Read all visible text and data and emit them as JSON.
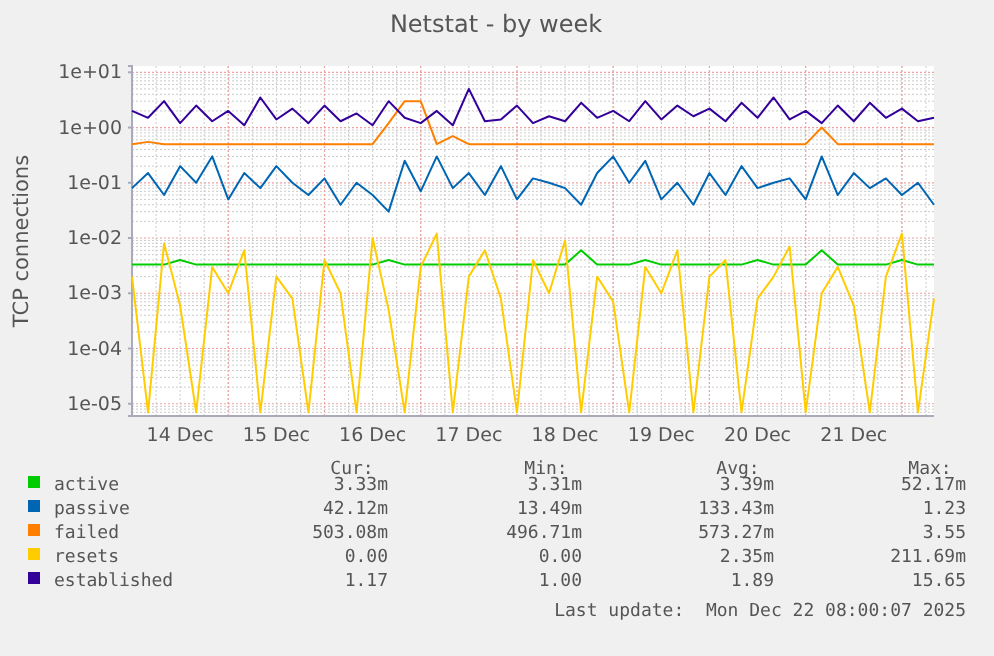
{
  "chart_data": {
    "type": "line",
    "title": "Netstat - by week",
    "ylabel": "TCP connections",
    "log": true,
    "grid": true,
    "legend": "bottom",
    "ylim": [
      6e-06,
      13
    ],
    "yticks": [
      {
        "value": 10,
        "label": "1e+01"
      },
      {
        "value": 1,
        "label": "1e+00"
      },
      {
        "value": 0.1,
        "label": "1e-01"
      },
      {
        "value": 0.01,
        "label": "1e-02"
      },
      {
        "value": 0.001,
        "label": "1e-03"
      },
      {
        "value": 0.0001,
        "label": "1e-04"
      },
      {
        "value": 1e-05,
        "label": "1e-05"
      }
    ],
    "xlim": [
      "2025-12-14T00:00",
      "2025-12-22T08:00"
    ],
    "xticks": [
      {
        "value": "2025-12-14T12:00",
        "label": "14 Dec"
      },
      {
        "value": "2025-12-15T12:00",
        "label": "15 Dec"
      },
      {
        "value": "2025-12-16T12:00",
        "label": "16 Dec"
      },
      {
        "value": "2025-12-17T12:00",
        "label": "17 Dec"
      },
      {
        "value": "2025-12-18T12:00",
        "label": "18 Dec"
      },
      {
        "value": "2025-12-19T12:00",
        "label": "19 Dec"
      },
      {
        "value": "2025-12-20T12:00",
        "label": "20 Dec"
      },
      {
        "value": "2025-12-21T12:00",
        "label": "21 Dec"
      }
    ],
    "x": [
      "2025-12-14T00:00",
      "2025-12-14T04:00",
      "2025-12-14T08:00",
      "2025-12-14T12:00",
      "2025-12-14T16:00",
      "2025-12-14T20:00",
      "2025-12-15T00:00",
      "2025-12-15T04:00",
      "2025-12-15T08:00",
      "2025-12-15T12:00",
      "2025-12-15T16:00",
      "2025-12-15T20:00",
      "2025-12-16T00:00",
      "2025-12-16T04:00",
      "2025-12-16T08:00",
      "2025-12-16T12:00",
      "2025-12-16T16:00",
      "2025-12-16T20:00",
      "2025-12-17T00:00",
      "2025-12-17T04:00",
      "2025-12-17T08:00",
      "2025-12-17T12:00",
      "2025-12-17T16:00",
      "2025-12-17T20:00",
      "2025-12-18T00:00",
      "2025-12-18T04:00",
      "2025-12-18T08:00",
      "2025-12-18T12:00",
      "2025-12-18T16:00",
      "2025-12-18T20:00",
      "2025-12-19T00:00",
      "2025-12-19T04:00",
      "2025-12-19T08:00",
      "2025-12-19T12:00",
      "2025-12-19T16:00",
      "2025-12-19T20:00",
      "2025-12-20T00:00",
      "2025-12-20T04:00",
      "2025-12-20T08:00",
      "2025-12-20T12:00",
      "2025-12-20T16:00",
      "2025-12-20T20:00",
      "2025-12-21T00:00",
      "2025-12-21T04:00",
      "2025-12-21T08:00",
      "2025-12-21T12:00",
      "2025-12-21T16:00",
      "2025-12-21T20:00",
      "2025-12-22T00:00",
      "2025-12-22T04:00",
      "2025-12-22T08:00"
    ],
    "series": [
      {
        "name": "active",
        "color": "#00cc00",
        "values": [
          0.0033,
          0.0033,
          0.0033,
          0.004,
          0.0033,
          0.0033,
          0.0033,
          0.0033,
          0.0033,
          0.0033,
          0.0033,
          0.0033,
          0.0033,
          0.0033,
          0.0033,
          0.0033,
          0.004,
          0.0033,
          0.0033,
          0.0033,
          0.0033,
          0.0033,
          0.0033,
          0.0033,
          0.0033,
          0.0033,
          0.0033,
          0.0033,
          0.006,
          0.0033,
          0.0033,
          0.0033,
          0.004,
          0.0033,
          0.0033,
          0.0033,
          0.0033,
          0.0033,
          0.0033,
          0.004,
          0.0033,
          0.0033,
          0.0033,
          0.006,
          0.0033,
          0.0033,
          0.0033,
          0.0033,
          0.004,
          0.0033,
          0.0033
        ]
      },
      {
        "name": "passive",
        "color": "#0066b3",
        "values": [
          0.08,
          0.15,
          0.06,
          0.2,
          0.1,
          0.3,
          0.05,
          0.15,
          0.08,
          0.2,
          0.1,
          0.06,
          0.12,
          0.04,
          0.1,
          0.06,
          0.03,
          0.25,
          0.07,
          0.3,
          0.08,
          0.15,
          0.06,
          0.2,
          0.05,
          0.12,
          0.1,
          0.08,
          0.04,
          0.15,
          0.3,
          0.1,
          0.25,
          0.05,
          0.1,
          0.04,
          0.15,
          0.06,
          0.2,
          0.08,
          0.1,
          0.12,
          0.05,
          0.3,
          0.06,
          0.15,
          0.08,
          0.12,
          0.06,
          0.1,
          0.04
        ]
      },
      {
        "name": "failed",
        "color": "#ff8000",
        "values": [
          0.5,
          0.55,
          0.5,
          0.5,
          0.5,
          0.5,
          0.5,
          0.5,
          0.5,
          0.5,
          0.5,
          0.5,
          0.5,
          0.5,
          0.5,
          0.5,
          1.2,
          3,
          3,
          0.5,
          0.7,
          0.5,
          0.5,
          0.5,
          0.5,
          0.5,
          0.5,
          0.5,
          0.5,
          0.5,
          0.5,
          0.5,
          0.5,
          0.5,
          0.5,
          0.5,
          0.5,
          0.5,
          0.5,
          0.5,
          0.5,
          0.5,
          0.5,
          1,
          0.5,
          0.5,
          0.5,
          0.5,
          0.5,
          0.5,
          0.5
        ]
      },
      {
        "name": "resets",
        "color": "#ffcc00",
        "values": [
          0.002,
          7e-06,
          0.008,
          0.0006,
          7e-06,
          0.003,
          0.001,
          0.006,
          7e-06,
          0.002,
          0.0008,
          7e-06,
          0.004,
          0.001,
          7e-06,
          0.01,
          0.0005,
          7e-06,
          0.003,
          0.012,
          7e-06,
          0.002,
          0.006,
          0.0008,
          7e-06,
          0.004,
          0.001,
          0.009,
          7e-06,
          0.002,
          0.0007,
          7e-06,
          0.003,
          0.001,
          0.006,
          7e-06,
          0.002,
          0.004,
          7e-06,
          0.0008,
          0.002,
          0.007,
          7e-06,
          0.001,
          0.003,
          0.0006,
          7e-06,
          0.002,
          0.012,
          7e-06,
          0.0008
        ]
      },
      {
        "name": "established",
        "color": "#330099",
        "values": [
          2,
          1.5,
          3,
          1.2,
          2.5,
          1.3,
          2,
          1.1,
          3.5,
          1.4,
          2.2,
          1.2,
          2.5,
          1.3,
          1.8,
          1.1,
          3,
          1.5,
          1.2,
          2,
          1.1,
          5,
          1.3,
          1.4,
          2.5,
          1.2,
          1.6,
          1.3,
          2.8,
          1.5,
          2,
          1.3,
          3,
          1.4,
          2.5,
          1.6,
          2.2,
          1.3,
          2.8,
          1.5,
          3.5,
          1.4,
          2,
          1.2,
          2.5,
          1.3,
          2.8,
          1.5,
          2.2,
          1.3,
          1.5
        ]
      }
    ],
    "annotations": [
      "Cur:",
      "Min:",
      "Avg:",
      "Max:",
      "3.33m",
      "3.31m",
      "3.39m",
      "52.17m",
      "42.12m",
      "13.49m",
      "133.43m",
      "1.23",
      "503.08m",
      "496.71m",
      "573.27m",
      "3.55",
      "0.00",
      "0.00",
      "2.35m",
      "211.69m",
      "1.17",
      "1.00",
      "1.89",
      "15.65",
      "Last update:  Mon Dec 22 08:00:07 2025"
    ]
  }
}
